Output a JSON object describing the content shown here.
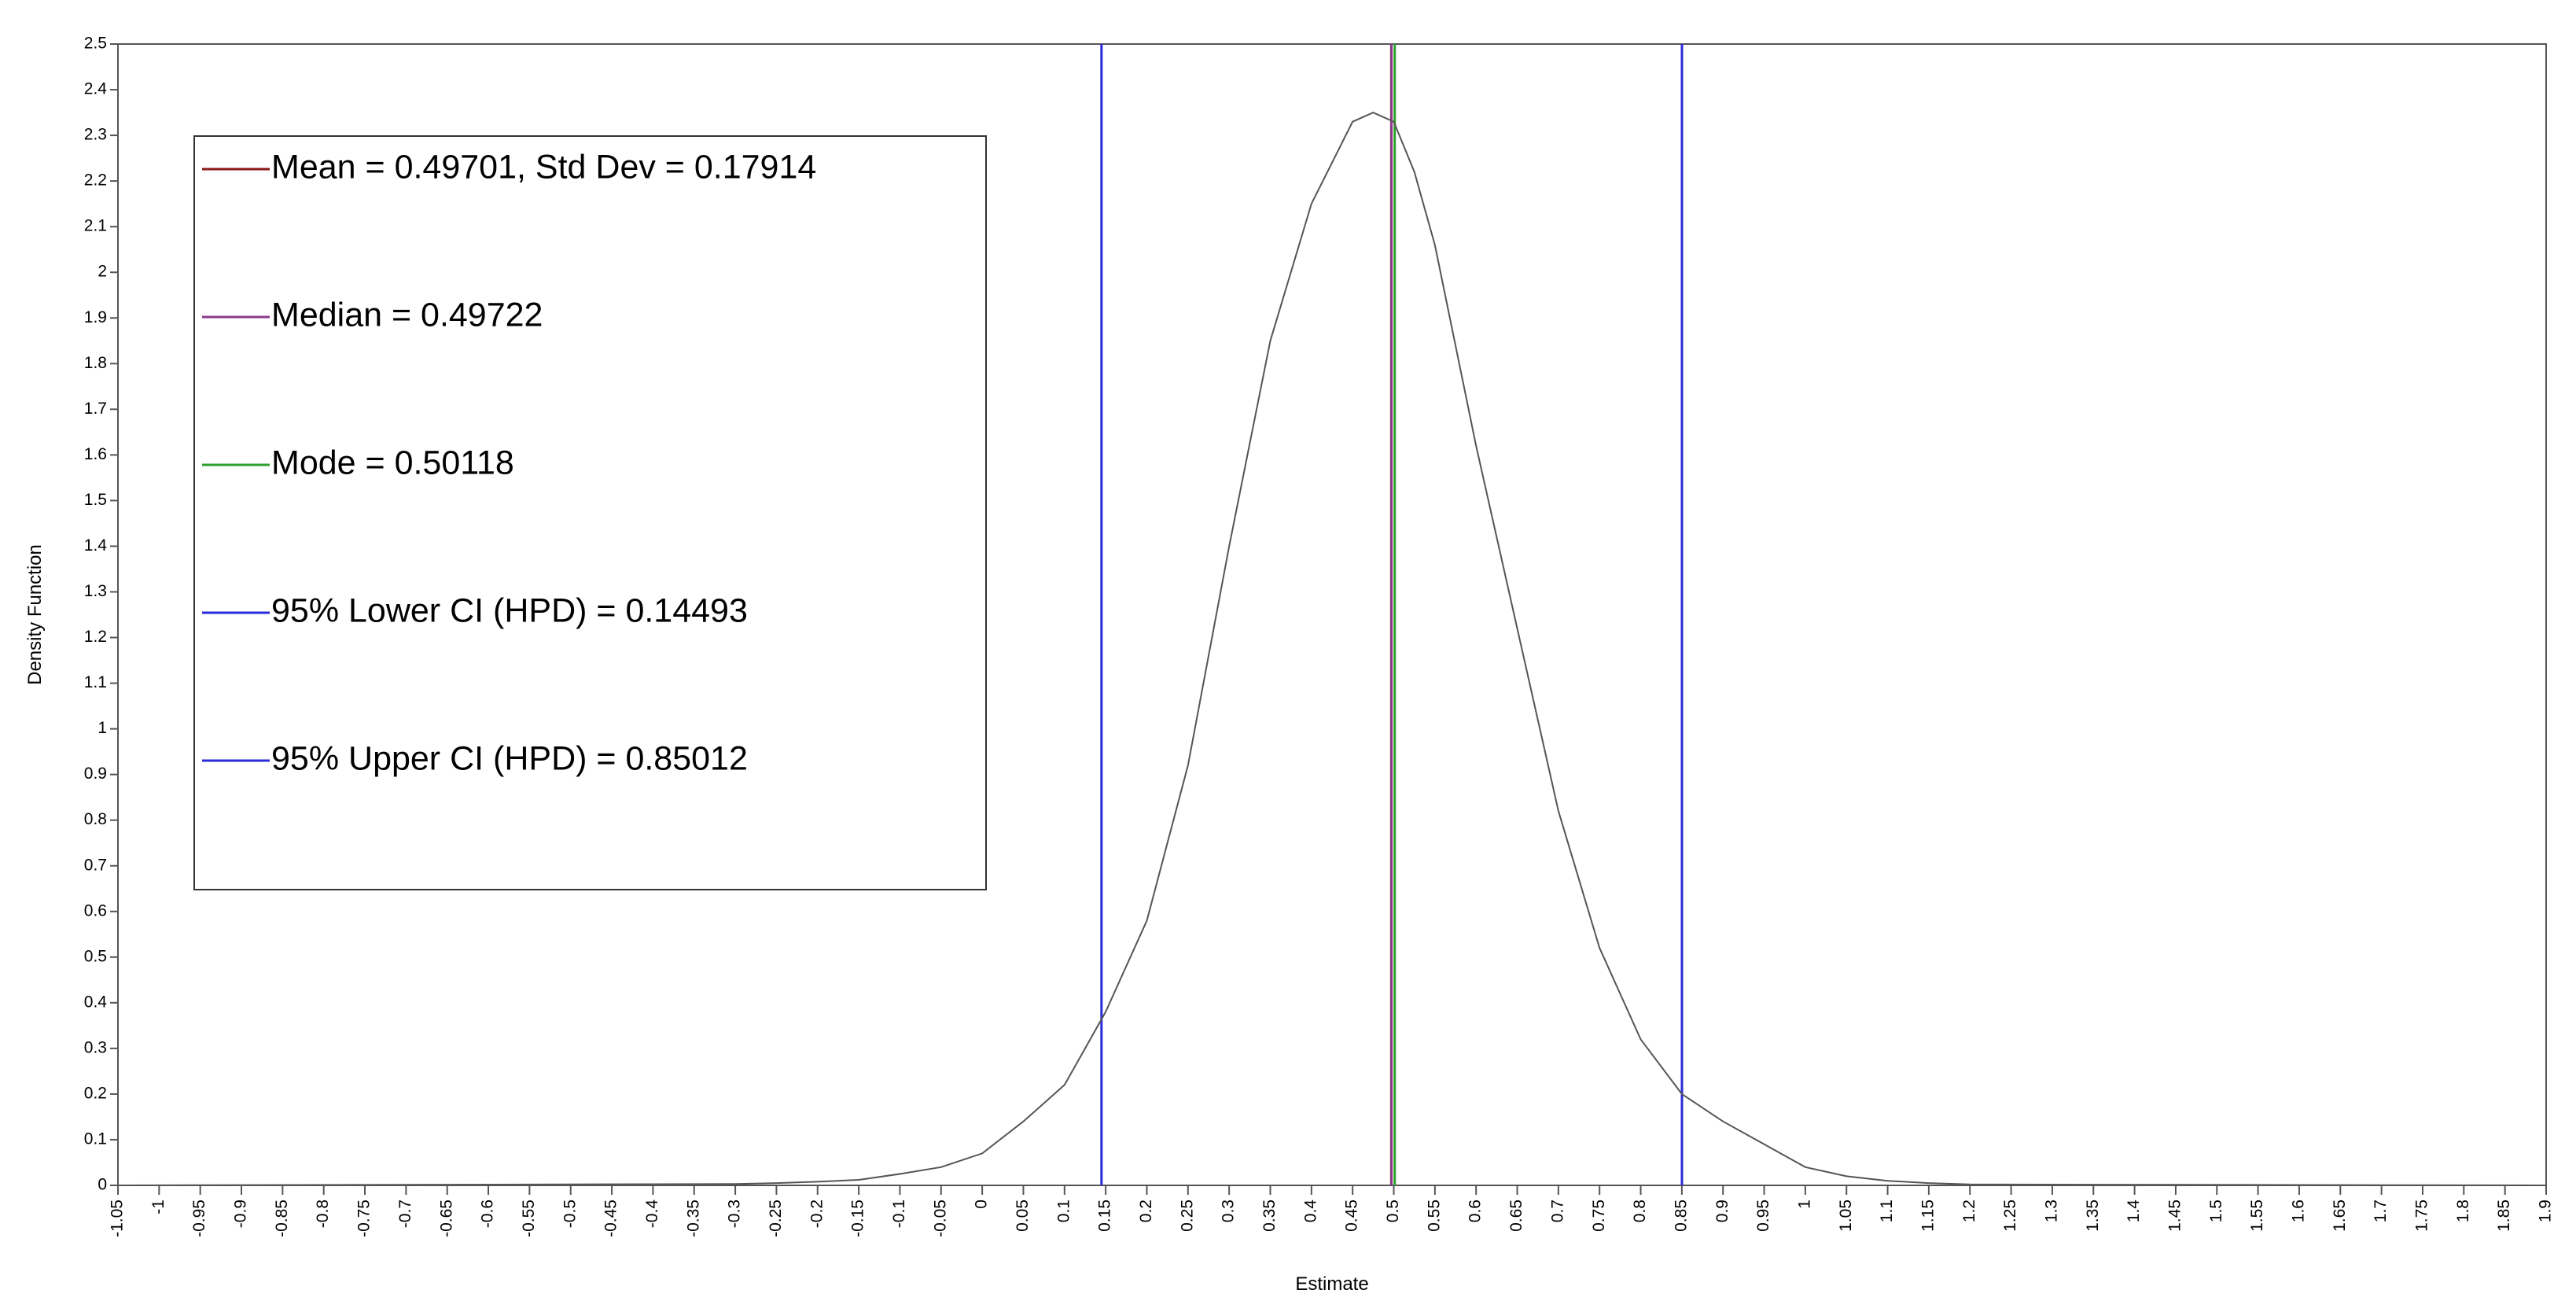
{
  "chart_data": {
    "type": "line",
    "title": "",
    "xlabel": "Estimate",
    "ylabel": "Density Function",
    "xlim": [
      -1.05,
      1.9
    ],
    "ylim": [
      0,
      2.5
    ],
    "x_step": 0.05,
    "y_step": 0.1,
    "grid": false,
    "legend_position": "top-left",
    "x_tick_labels": [
      "-1.05",
      "-1",
      "-0.95",
      "-0.9",
      "-0.85",
      "-0.8",
      "-0.75",
      "-0.7",
      "-0.65",
      "-0.6",
      "-0.55",
      "-0.5",
      "-0.45",
      "-0.4",
      "-0.35",
      "-0.3",
      "-0.25",
      "-0.2",
      "-0.15",
      "-0.1",
      "-0.05",
      "0",
      "0.05",
      "0.1",
      "0.15",
      "0.2",
      "0.25",
      "0.3",
      "0.35",
      "0.4",
      "0.45",
      "0.5",
      "0.55",
      "0.6",
      "0.65",
      "0.7",
      "0.75",
      "0.8",
      "0.85",
      "0.9",
      "0.95",
      "1",
      "1.05",
      "1.1",
      "1.15",
      "1.2",
      "1.25",
      "1.3",
      "1.35",
      "1.4",
      "1.45",
      "1.5",
      "1.55",
      "1.6",
      "1.65",
      "1.7",
      "1.75",
      "1.8",
      "1.85",
      "1.9"
    ],
    "y_tick_labels": [
      "0",
      "0.1",
      "0.2",
      "0.3",
      "0.4",
      "0.5",
      "0.6",
      "0.7",
      "0.8",
      "0.9",
      "1",
      "1.1",
      "1.2",
      "1.3",
      "1.4",
      "1.5",
      "1.6",
      "1.7",
      "1.8",
      "1.9",
      "2",
      "2.1",
      "2.2",
      "2.3",
      "2.4",
      "2.5"
    ],
    "density": {
      "x": [
        -1.05,
        -0.3,
        -0.25,
        -0.2,
        -0.15,
        -0.1,
        -0.05,
        0.0,
        0.05,
        0.1,
        0.125,
        0.15,
        0.2,
        0.25,
        0.3,
        0.35,
        0.4,
        0.45,
        0.475,
        0.5,
        0.525,
        0.55,
        0.6,
        0.65,
        0.7,
        0.75,
        0.8,
        0.85,
        0.9,
        0.95,
        1.0,
        1.05,
        1.1,
        1.15,
        1.2,
        1.9
      ],
      "y": [
        0,
        0.003,
        0.005,
        0.008,
        0.012,
        0.025,
        0.04,
        0.07,
        0.14,
        0.22,
        0.3,
        0.38,
        0.58,
        0.92,
        1.4,
        1.85,
        2.15,
        2.33,
        2.35,
        2.33,
        2.22,
        2.06,
        1.62,
        1.22,
        0.82,
        0.52,
        0.32,
        0.2,
        0.14,
        0.09,
        0.04,
        0.02,
        0.01,
        0.005,
        0.002,
        0
      ]
    },
    "reference_lines": [
      {
        "name": "Mean = 0.49701, Std Dev = 0.17914",
        "x": 0.49701,
        "color": "#8b1a1a"
      },
      {
        "name": "Median = 0.49722",
        "x": 0.49722,
        "color": "#8b3a8b"
      },
      {
        "name": "Mode = 0.50118",
        "x": 0.50118,
        "color": "#2ca02c"
      },
      {
        "name": "95% Lower CI (HPD) = 0.14493",
        "x": 0.14493,
        "color": "#2b2bd9"
      },
      {
        "name": "95% Upper CI (HPD) = 0.85012",
        "x": 0.85012,
        "color": "#2b2bd9"
      }
    ],
    "curve_color": "#555555"
  }
}
